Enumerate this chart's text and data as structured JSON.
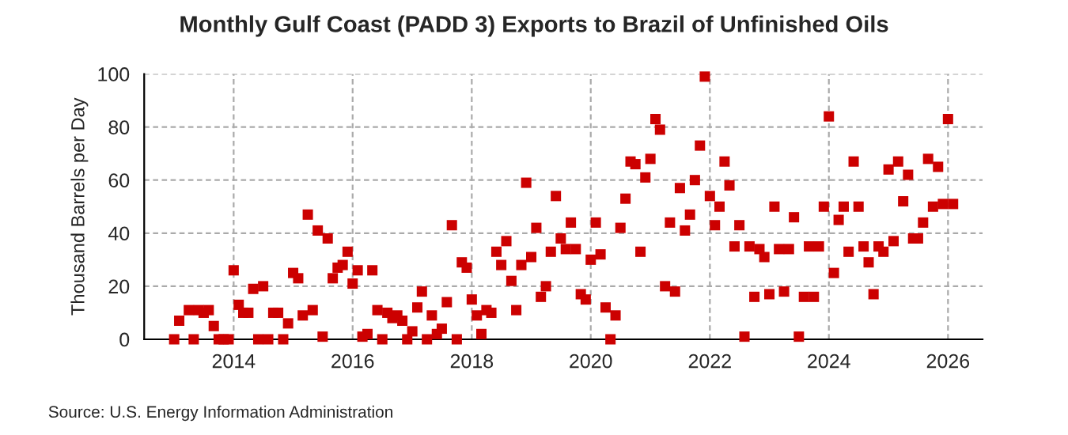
{
  "chart_data": {
    "type": "scatter",
    "title": "Monthly Gulf Coast (PADD 3) Exports to Brazil of Unfinished Oils",
    "ylabel": "Thousand Barrels per Day",
    "annotations": [
      "Source: U.S. Energy Information Administration"
    ],
    "x": [
      "2013-01",
      "2013-02",
      "2013-04",
      "2013-05",
      "2013-06",
      "2013-07",
      "2013-08",
      "2013-09",
      "2013-10",
      "2013-11",
      "2013-12",
      "2014-01",
      "2014-02",
      "2014-03",
      "2014-04",
      "2014-05",
      "2014-06",
      "2014-07",
      "2014-08",
      "2014-09",
      "2014-10",
      "2014-11",
      "2014-12",
      "2015-01",
      "2015-02",
      "2015-03",
      "2015-04",
      "2015-05",
      "2015-06",
      "2015-07",
      "2015-08",
      "2015-09",
      "2015-10",
      "2015-11",
      "2015-12",
      "2016-01",
      "2016-02",
      "2016-03",
      "2016-04",
      "2016-05",
      "2016-06",
      "2016-07",
      "2016-08",
      "2016-09",
      "2016-10",
      "2016-11",
      "2016-12",
      "2017-01",
      "2017-02",
      "2017-03",
      "2017-04",
      "2017-05",
      "2017-06",
      "2017-07",
      "2017-08",
      "2017-09",
      "2017-10",
      "2017-11",
      "2017-12",
      "2018-01",
      "2018-02",
      "2018-03",
      "2018-04",
      "2018-05",
      "2018-06",
      "2018-07",
      "2018-08",
      "2018-09",
      "2018-10",
      "2018-11",
      "2018-12",
      "2019-01",
      "2019-02",
      "2019-03",
      "2019-04",
      "2019-05",
      "2019-06",
      "2019-07",
      "2019-08",
      "2019-09",
      "2019-10",
      "2019-11",
      "2019-12",
      "2020-01",
      "2020-02",
      "2020-03",
      "2020-04",
      "2020-05",
      "2020-06",
      "2020-07",
      "2020-08",
      "2020-09",
      "2020-10",
      "2020-11",
      "2020-12",
      "2021-01",
      "2021-02",
      "2021-03",
      "2021-04",
      "2021-05",
      "2021-06",
      "2021-07",
      "2021-08",
      "2021-09",
      "2021-10",
      "2021-11",
      "2021-12",
      "2022-01",
      "2022-02",
      "2022-03",
      "2022-04",
      "2022-05",
      "2022-06",
      "2022-07",
      "2022-08",
      "2022-09",
      "2022-10",
      "2022-11",
      "2022-12",
      "2023-01",
      "2023-02",
      "2023-03",
      "2023-04",
      "2023-05",
      "2023-06",
      "2023-07",
      "2023-08",
      "2023-09",
      "2023-10",
      "2023-11",
      "2023-12",
      "2024-01",
      "2024-02",
      "2024-03",
      "2024-04",
      "2024-05",
      "2024-06",
      "2024-07",
      "2024-08",
      "2024-09",
      "2024-10",
      "2024-11",
      "2024-12",
      "2025-01",
      "2025-02",
      "2025-03",
      "2025-04",
      "2025-05",
      "2025-06",
      "2025-07",
      "2025-08",
      "2025-09",
      "2025-10",
      "2025-11",
      "2025-12",
      "2026-01",
      "2026-02"
    ],
    "series": [
      {
        "color": "#cc0000",
        "values": [
          0,
          7,
          11,
          0,
          11,
          10,
          11,
          5,
          0,
          0,
          0,
          26,
          13,
          10,
          10,
          19,
          0,
          20,
          0,
          10,
          10,
          0,
          6,
          25,
          23,
          9,
          47,
          11,
          41,
          1,
          38,
          23,
          27,
          28,
          33,
          21,
          26,
          1,
          2,
          26,
          11,
          0,
          10,
          8,
          9,
          7,
          0,
          3,
          12,
          18,
          0,
          9,
          2,
          4,
          14,
          43,
          0,
          29,
          27,
          15,
          9,
          2,
          11,
          10,
          33,
          28,
          37,
          22,
          11,
          28,
          59,
          31,
          42,
          16,
          20,
          33,
          54,
          38,
          34,
          44,
          34,
          17,
          15,
          30,
          44,
          32,
          12,
          0,
          9,
          42,
          53,
          67,
          66,
          33,
          61,
          68,
          83,
          79,
          20,
          44,
          18,
          57,
          41,
          47,
          60,
          73,
          99,
          54,
          43,
          50,
          67,
          58,
          35,
          43,
          1,
          35,
          16,
          34,
          31,
          17,
          50,
          34,
          18,
          34,
          46,
          1,
          16,
          35,
          16,
          35,
          50,
          84,
          25,
          45,
          50,
          33,
          67,
          50,
          35,
          29,
          17,
          35,
          33,
          64,
          37,
          67,
          52,
          62,
          38,
          38,
          44,
          68,
          50,
          65,
          51,
          83,
          51
        ]
      }
    ],
    "marker": "square",
    "xlim": [
      "2012-07",
      "2026-08"
    ],
    "xticks": [
      "2014",
      "2016",
      "2018",
      "2020",
      "2022",
      "2024",
      "2026"
    ],
    "ylim": [
      0,
      100
    ],
    "yticks": [
      0,
      20,
      40,
      60,
      80,
      100
    ],
    "grid": true,
    "legend": false
  }
}
